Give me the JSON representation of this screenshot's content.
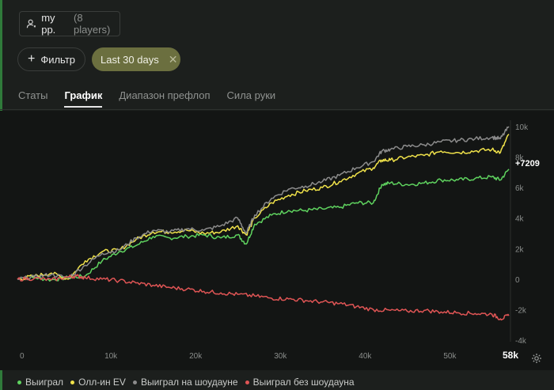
{
  "header": {
    "player_name": "my pp.",
    "player_count": "(8 players)"
  },
  "filters": {
    "filter_label": "Фильтр",
    "date_chip_label": "Last 30 days",
    "date_chip_color": "#6b6f3f"
  },
  "tabs": [
    {
      "label": "Статы",
      "active": false
    },
    {
      "label": "График",
      "active": true
    },
    {
      "label": "Диапазон префлоп",
      "active": false
    },
    {
      "label": "Сила руки",
      "active": false
    }
  ],
  "chart_data": {
    "type": "line",
    "x_ticks": [
      "0",
      "10k",
      "20k",
      "30k",
      "40k",
      "50k",
      "58k"
    ],
    "y_ticks": [
      "10k",
      "8k",
      "6k",
      "4k",
      "2k",
      "0",
      "-2k",
      "-4k"
    ],
    "xlim": [
      0,
      58000
    ],
    "ylim": [
      -4000,
      10000
    ],
    "end_label": "+7209",
    "grid": false,
    "legend_position": "bottom-left",
    "series": [
      {
        "name": "Выиграл",
        "color": "#5fd35f",
        "x": [
          0,
          2000,
          4000,
          6000,
          8000,
          10000,
          12000,
          14000,
          16000,
          18000,
          20000,
          22000,
          24000,
          26000,
          27000,
          28000,
          30000,
          32000,
          34000,
          36000,
          38000,
          40000,
          42000,
          43000,
          44000,
          46000,
          48000,
          50000,
          52000,
          54000,
          56000,
          57000,
          58000
        ],
        "y": [
          0,
          100,
          -50,
          100,
          200,
          1200,
          1800,
          2200,
          2800,
          2700,
          2800,
          2900,
          2700,
          2900,
          2300,
          3600,
          4200,
          4500,
          4500,
          4600,
          4700,
          5000,
          5000,
          6200,
          6300,
          6200,
          6300,
          6500,
          6500,
          6600,
          6700,
          6500,
          7209
        ]
      },
      {
        "name": "Олл-ин EV",
        "color": "#f0e24a",
        "x": [
          0,
          2000,
          4000,
          6000,
          8000,
          10000,
          12000,
          14000,
          16000,
          18000,
          20000,
          22000,
          24000,
          26000,
          27000,
          28000,
          30000,
          32000,
          34000,
          36000,
          38000,
          40000,
          42000,
          43000,
          44000,
          46000,
          48000,
          50000,
          52000,
          54000,
          56000,
          57000,
          58000
        ],
        "y": [
          0,
          200,
          400,
          0,
          1200,
          1800,
          1900,
          2600,
          3100,
          3100,
          3200,
          3000,
          3100,
          3500,
          2900,
          4000,
          5000,
          5500,
          5800,
          6000,
          6400,
          6900,
          7300,
          7800,
          7800,
          8000,
          8100,
          8400,
          8300,
          8400,
          8500,
          8300,
          9500
        ]
      },
      {
        "name": "Выиграл на шоудауне",
        "color": "#8c8c8c",
        "x": [
          0,
          2000,
          4000,
          6000,
          8000,
          10000,
          12000,
          14000,
          16000,
          18000,
          20000,
          22000,
          24000,
          26000,
          27000,
          28000,
          30000,
          32000,
          34000,
          36000,
          38000,
          40000,
          42000,
          43000,
          44000,
          46000,
          48000,
          50000,
          52000,
          54000,
          56000,
          57000,
          58000
        ],
        "y": [
          0,
          150,
          300,
          100,
          900,
          1700,
          1900,
          2700,
          3200,
          3100,
          3300,
          3200,
          3500,
          4000,
          3000,
          4200,
          5300,
          5900,
          6100,
          6400,
          6800,
          7300,
          7700,
          8400,
          8500,
          8700,
          8800,
          9000,
          9100,
          9200,
          9300,
          9200,
          10000
        ]
      },
      {
        "name": "Выиграл без шоудауна",
        "color": "#e05555",
        "x": [
          0,
          2000,
          4000,
          6000,
          7000,
          8000,
          10000,
          12000,
          14000,
          16000,
          18000,
          20000,
          22000,
          24000,
          26000,
          28000,
          30000,
          32000,
          34000,
          36000,
          38000,
          40000,
          42000,
          44000,
          46000,
          48000,
          50000,
          52000,
          54000,
          56000,
          57000,
          58000
        ],
        "y": [
          0,
          50,
          -50,
          150,
          200,
          100,
          0,
          -100,
          -250,
          -400,
          -550,
          -650,
          -800,
          -900,
          -1000,
          -1100,
          -1250,
          -1300,
          -1400,
          -1500,
          -1600,
          -1800,
          -2000,
          -2050,
          -2100,
          -2050,
          -2150,
          -2200,
          -2250,
          -2300,
          -2600,
          -2400
        ]
      }
    ]
  }
}
